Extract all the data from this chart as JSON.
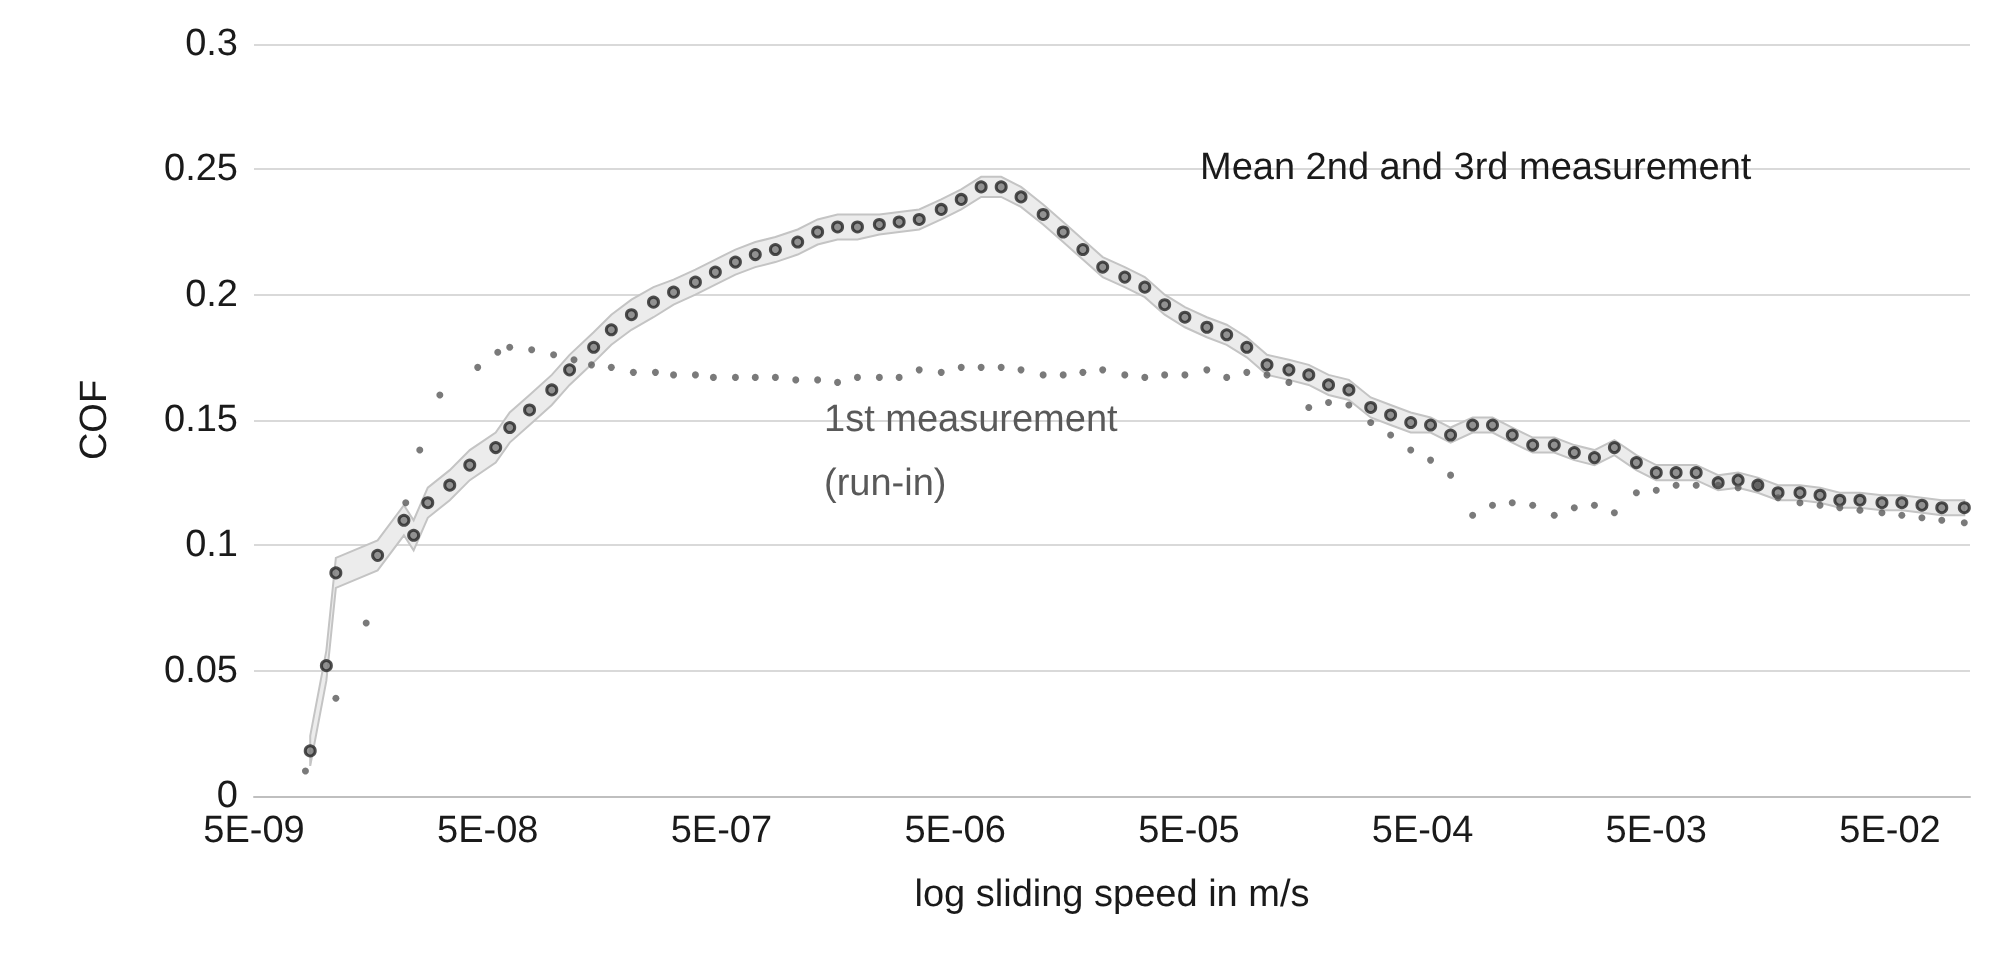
{
  "chart_data": {
    "type": "scatter",
    "xlabel": "log sliding speed in m/s",
    "ylabel": "COF",
    "log": "x",
    "grid": "y",
    "legend": false,
    "marker": "circle",
    "xlim": [
      5e-09,
      0.11
    ],
    "xticks": [
      {
        "value": 5e-09,
        "label": "5E-09"
      },
      {
        "value": 5e-08,
        "label": "5E-08"
      },
      {
        "value": 5e-07,
        "label": "5E-07"
      },
      {
        "value": 5e-06,
        "label": "5E-06"
      },
      {
        "value": 5e-05,
        "label": "5E-05"
      },
      {
        "value": 0.0005,
        "label": "5E-04"
      },
      {
        "value": 0.005,
        "label": "5E-03"
      },
      {
        "value": 0.05,
        "label": "5E-02"
      }
    ],
    "ylim": [
      0,
      0.3
    ],
    "yticks": [
      0,
      0.05,
      0.1,
      0.15,
      0.2,
      0.25,
      0.3
    ],
    "series": [
      {
        "name": "Mean 2nd and 3rd measurement",
        "color": "#262626",
        "x": [
          8.7e-09,
          1.02e-08,
          1.12e-08,
          1.69e-08,
          2.19e-08,
          2.41e-08,
          2.77e-08,
          3.44e-08,
          4.19e-08,
          5.41e-08,
          6.21e-08,
          7.55e-08,
          9.4e-08,
          1.12e-07,
          1.42e-07,
          1.69e-07,
          2.06e-07,
          2.56e-07,
          3.12e-07,
          3.87e-07,
          4.71e-07,
          5.74e-07,
          6.98e-07,
          8.51e-07,
          1.06e-06,
          1.29e-06,
          1.57e-06,
          1.91e-06,
          2.37e-06,
          2.88e-06,
          3.51e-06,
          4.36e-06,
          5.31e-06,
          6.46e-06,
          7.87e-06,
          9.57e-06,
          1.19e-05,
          1.45e-05,
          1.76e-05,
          2.14e-05,
          2.66e-05,
          3.24e-05,
          3.94e-05,
          4.81e-05,
          5.97e-05,
          7.26e-05,
          8.85e-05,
          0.000108,
          0.000134,
          0.000163,
          0.000198,
          0.000242,
          0.0003,
          0.000365,
          0.000445,
          0.000541,
          0.000659,
          0.000819,
          0.000996,
          0.00121,
          0.00148,
          0.00183,
          0.00223,
          0.00272,
          0.00331,
          0.00411,
          0.005,
          0.00608,
          0.00741,
          0.0092,
          0.0112,
          0.0136,
          0.0166,
          0.0206,
          0.0251,
          0.0305,
          0.0372,
          0.0462,
          0.0562,
          0.0685,
          0.0833,
          0.104
        ],
        "values": [
          0.018,
          0.052,
          0.089,
          0.096,
          0.11,
          0.104,
          0.117,
          0.124,
          0.132,
          0.139,
          0.147,
          0.154,
          0.162,
          0.17,
          0.179,
          0.186,
          0.192,
          0.197,
          0.201,
          0.205,
          0.209,
          0.213,
          0.216,
          0.218,
          0.221,
          0.225,
          0.227,
          0.227,
          0.228,
          0.229,
          0.23,
          0.234,
          0.238,
          0.243,
          0.243,
          0.239,
          0.232,
          0.225,
          0.218,
          0.211,
          0.207,
          0.203,
          0.196,
          0.191,
          0.187,
          0.184,
          0.179,
          0.172,
          0.17,
          0.168,
          0.164,
          0.162,
          0.155,
          0.152,
          0.149,
          0.148,
          0.144,
          0.148,
          0.148,
          0.144,
          0.14,
          0.14,
          0.137,
          0.135,
          0.139,
          0.133,
          0.129,
          0.129,
          0.129,
          0.125,
          0.126,
          0.124,
          0.121,
          0.121,
          0.12,
          0.118,
          0.118,
          0.117,
          0.117,
          0.116,
          0.115,
          0.115
        ],
        "lower": [
          0.012,
          0.046,
          0.083,
          0.09,
          0.104,
          0.098,
          0.111,
          0.118,
          0.126,
          0.133,
          0.141,
          0.148,
          0.156,
          0.164,
          0.173,
          0.18,
          0.186,
          0.191,
          0.196,
          0.2,
          0.204,
          0.208,
          0.211,
          0.213,
          0.216,
          0.22,
          0.222,
          0.222,
          0.224,
          0.225,
          0.226,
          0.23,
          0.234,
          0.239,
          0.239,
          0.235,
          0.228,
          0.221,
          0.214,
          0.207,
          0.203,
          0.199,
          0.192,
          0.187,
          0.183,
          0.18,
          0.175,
          0.168,
          0.166,
          0.164,
          0.16,
          0.158,
          0.151,
          0.148,
          0.145,
          0.145,
          0.141,
          0.145,
          0.145,
          0.141,
          0.137,
          0.137,
          0.134,
          0.132,
          0.136,
          0.13,
          0.126,
          0.126,
          0.126,
          0.122,
          0.123,
          0.121,
          0.118,
          0.118,
          0.117,
          0.115,
          0.115,
          0.114,
          0.114,
          0.113,
          0.112,
          0.112
        ],
        "upper": [
          0.024,
          0.058,
          0.095,
          0.102,
          0.116,
          0.11,
          0.123,
          0.13,
          0.138,
          0.145,
          0.153,
          0.16,
          0.168,
          0.176,
          0.185,
          0.192,
          0.198,
          0.203,
          0.206,
          0.21,
          0.214,
          0.218,
          0.221,
          0.223,
          0.226,
          0.23,
          0.232,
          0.232,
          0.232,
          0.233,
          0.234,
          0.238,
          0.242,
          0.247,
          0.247,
          0.243,
          0.236,
          0.229,
          0.222,
          0.215,
          0.211,
          0.207,
          0.2,
          0.195,
          0.191,
          0.188,
          0.183,
          0.176,
          0.174,
          0.172,
          0.168,
          0.166,
          0.159,
          0.156,
          0.153,
          0.151,
          0.147,
          0.151,
          0.151,
          0.147,
          0.143,
          0.143,
          0.14,
          0.138,
          0.142,
          0.136,
          0.132,
          0.132,
          0.132,
          0.128,
          0.129,
          0.127,
          0.124,
          0.124,
          0.123,
          0.121,
          0.121,
          0.12,
          0.12,
          0.119,
          0.118,
          0.118
        ]
      },
      {
        "name": "1st measurement (run-in)",
        "color": "#595959",
        "x": [
          8.3e-09,
          1.12e-08,
          1.51e-08,
          2.23e-08,
          2.56e-08,
          3.12e-08,
          4.53e-08,
          5.52e-08,
          6.21e-08,
          7.71e-08,
          9.57e-08,
          1.17e-07,
          1.39e-07,
          1.69e-07,
          2.1e-07,
          2.61e-07,
          3.12e-07,
          3.87e-07,
          4.62e-07,
          5.74e-07,
          6.98e-07,
          8.51e-07,
          1.04e-06,
          1.29e-06,
          1.57e-06,
          1.91e-06,
          2.37e-06,
          2.88e-06,
          3.51e-06,
          4.36e-06,
          5.31e-06,
          6.46e-06,
          7.87e-06,
          9.57e-06,
          1.19e-05,
          1.45e-05,
          1.76e-05,
          2.14e-05,
          2.66e-05,
          3.24e-05,
          3.94e-05,
          4.81e-05,
          5.97e-05,
          7.26e-05,
          8.85e-05,
          0.000108,
          0.000134,
          0.000163,
          0.000198,
          0.000242,
          0.0003,
          0.000365,
          0.000445,
          0.000541,
          0.000659,
          0.000819,
          0.000996,
          0.00121,
          0.00148,
          0.00183,
          0.00223,
          0.00272,
          0.00331,
          0.00411,
          0.005,
          0.00608,
          0.00741,
          0.0092,
          0.0112,
          0.0136,
          0.0166,
          0.0206,
          0.0251,
          0.0305,
          0.0372,
          0.0462,
          0.0562,
          0.0685,
          0.0833,
          0.104
        ],
        "values": [
          0.01,
          0.039,
          0.069,
          0.117,
          0.138,
          0.16,
          0.171,
          0.177,
          0.179,
          0.178,
          0.176,
          0.174,
          0.172,
          0.171,
          0.169,
          0.169,
          0.168,
          0.168,
          0.167,
          0.167,
          0.167,
          0.167,
          0.166,
          0.166,
          0.165,
          0.167,
          0.167,
          0.167,
          0.17,
          0.169,
          0.171,
          0.171,
          0.171,
          0.17,
          0.168,
          0.168,
          0.169,
          0.17,
          0.168,
          0.167,
          0.168,
          0.168,
          0.17,
          0.167,
          0.169,
          0.168,
          0.165,
          0.155,
          0.157,
          0.156,
          0.149,
          0.144,
          0.138,
          0.134,
          0.128,
          0.112,
          0.116,
          0.117,
          0.116,
          0.112,
          0.115,
          0.116,
          0.113,
          0.121,
          0.122,
          0.124,
          0.124,
          0.124,
          0.123,
          0.124,
          0.119,
          0.117,
          0.116,
          0.115,
          0.114,
          0.113,
          0.112,
          0.111,
          0.11,
          0.109
        ]
      }
    ]
  }
}
